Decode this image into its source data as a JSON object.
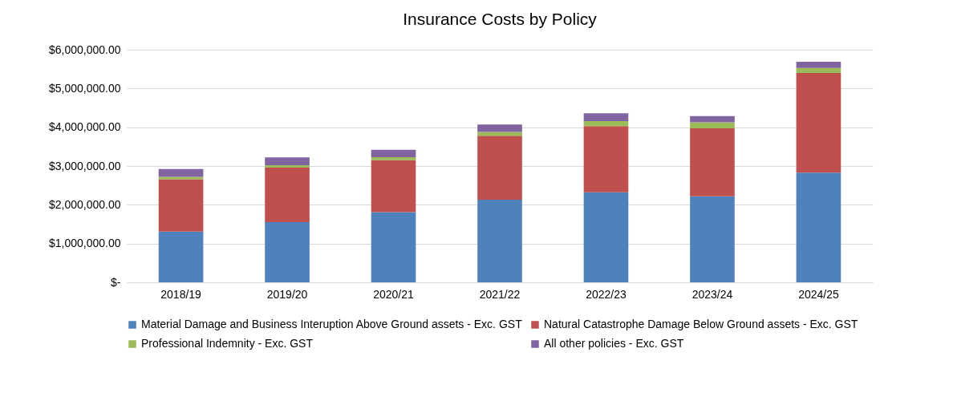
{
  "chart_data": {
    "type": "bar",
    "title": "Insurance Costs by Policy",
    "stacked": true,
    "grid": "y",
    "legend": "bottom",
    "categories": [
      "2018/19",
      "2019/20",
      "2020/21",
      "2021/22",
      "2022/23",
      "2023/24",
      "2024/25"
    ],
    "ylim": [
      0,
      6000000
    ],
    "yticks": [
      {
        "value": 0,
        "label": "$-"
      },
      {
        "value": 1000000,
        "label": "$1,000,000.00"
      },
      {
        "value": 2000000,
        "label": "$2,000,000.00"
      },
      {
        "value": 3000000,
        "label": "$3,000,000.00"
      },
      {
        "value": 4000000,
        "label": "$4,000,000.00"
      },
      {
        "value": 5000000,
        "label": "$5,000,000.00"
      },
      {
        "value": 6000000,
        "label": "$6,000,000.00"
      }
    ],
    "series": [
      {
        "name": "Material Damage and Business Interuption Above Ground assets - Exc. GST",
        "color": "#4f81bd",
        "values": [
          1310000,
          1550000,
          1810000,
          2130000,
          2320000,
          2220000,
          2830000
        ]
      },
      {
        "name": "Natural Catastrophe Damage Below Ground assets - Exc. GST",
        "color": "#c0504d",
        "values": [
          1350000,
          1410000,
          1340000,
          1650000,
          1710000,
          1750000,
          2570000
        ]
      },
      {
        "name": "Professional Indemnity - Exc. GST",
        "color": "#9bbb59",
        "values": [
          60000,
          60000,
          80000,
          100000,
          130000,
          160000,
          130000
        ]
      },
      {
        "name": "All other policies - Exc. GST",
        "color": "#8064a2",
        "values": [
          200000,
          200000,
          190000,
          190000,
          200000,
          160000,
          160000
        ]
      }
    ]
  }
}
